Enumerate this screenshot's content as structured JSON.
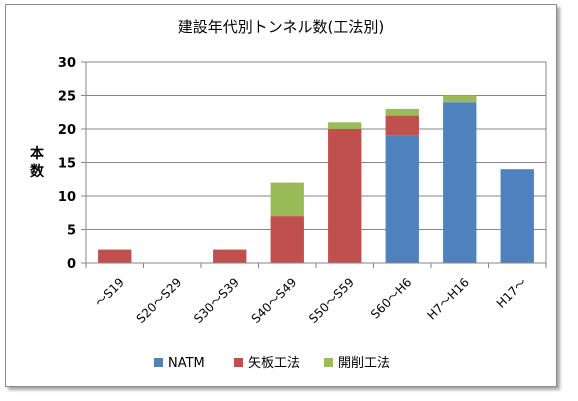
{
  "chart_data": {
    "type": "bar",
    "stacked": true,
    "title": "建設年代別トンネル数(工法別)",
    "ylabel": "本数",
    "xlabel": "",
    "ylim": [
      0,
      30
    ],
    "yticks": [
      0,
      5,
      10,
      15,
      20,
      25,
      30
    ],
    "grid": true,
    "legend_position": "bottom",
    "categories": [
      "～S19",
      "S20～S29",
      "S30～S39",
      "S40～S49",
      "S50～S59",
      "S60～H6",
      "H7～H16",
      "H17～"
    ],
    "series": [
      {
        "name": "NATM",
        "color": "#4f81bd",
        "values": [
          0,
          0,
          0,
          0,
          0,
          19,
          24,
          14
        ]
      },
      {
        "name": "矢板工法",
        "color": "#c0504d",
        "values": [
          2,
          0,
          2,
          7,
          20,
          3,
          0,
          0
        ]
      },
      {
        "name": "開削工法",
        "color": "#9bbb59",
        "values": [
          0,
          0,
          0,
          5,
          1,
          1,
          1,
          0
        ]
      }
    ]
  }
}
